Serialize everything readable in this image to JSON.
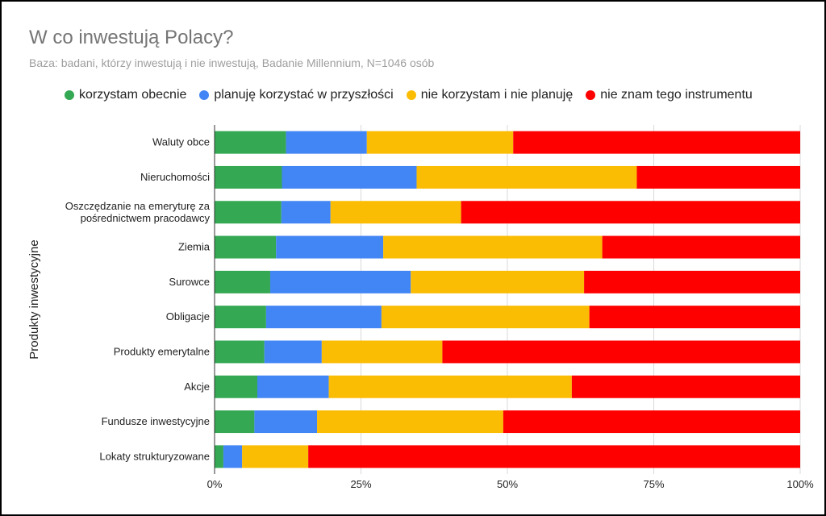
{
  "chart_data": {
    "type": "bar",
    "orientation": "horizontal",
    "stacked": true,
    "title": "W co inwestują Polacy?",
    "subtitle": "Baza: badani, którzy inwestują i nie inwestują, Badanie Millennium, N=1046 osób",
    "xlabel": "",
    "ylabel": "Produkty inwestycyjne",
    "xlim": [
      0,
      100
    ],
    "xticks": [
      "0%",
      "25%",
      "50%",
      "75%",
      "100%"
    ],
    "legend_position": "top",
    "categories": [
      [
        "Waluty obce"
      ],
      [
        "Nieruchomości"
      ],
      [
        "Oszczędzanie na emeryturę za",
        "pośrednictwem pracodawcy"
      ],
      [
        "Ziemia"
      ],
      [
        "Surowce"
      ],
      [
        "Obligacje"
      ],
      [
        "Produkty emerytalne"
      ],
      [
        "Akcje"
      ],
      [
        "Fundusze inwestycyjne"
      ],
      [
        "Lokaty strukturyzowane"
      ]
    ],
    "series": [
      {
        "name": "korzystam obecnie",
        "color": "#34a853",
        "values": [
          12.2,
          11.5,
          11.4,
          10.5,
          9.5,
          8.8,
          8.5,
          7.3,
          6.8,
          1.5
        ]
      },
      {
        "name": "planuję korzystać w przyszłości",
        "color": "#4285f4",
        "values": [
          13.8,
          23.0,
          8.4,
          18.3,
          24.0,
          19.7,
          9.8,
          12.2,
          10.7,
          3.2
        ]
      },
      {
        "name": "nie korzystam i nie planuję",
        "color": "#fbbc04",
        "values": [
          25.0,
          37.6,
          22.3,
          37.4,
          29.6,
          35.5,
          20.6,
          41.5,
          31.8,
          11.3
        ]
      },
      {
        "name": "nie znam tego instrumentu",
        "color": "#ff0000",
        "values": [
          49.0,
          27.9,
          57.9,
          33.8,
          36.9,
          36.0,
          61.1,
          39.0,
          50.7,
          84.0
        ]
      }
    ]
  }
}
